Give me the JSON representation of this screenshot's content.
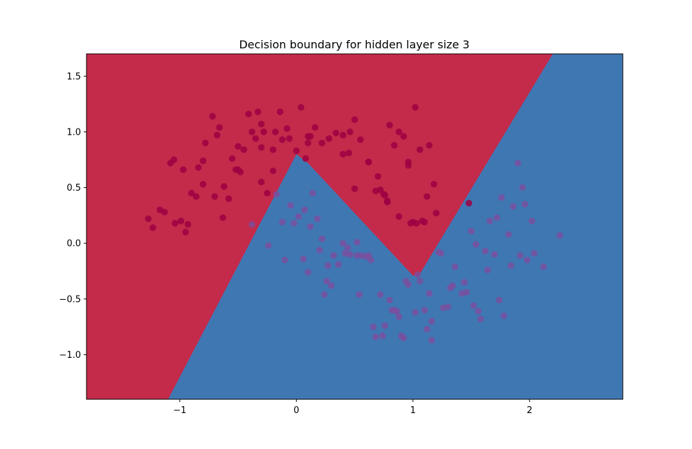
{
  "chart_data": {
    "type": "scatter",
    "title": "Decision boundary for hidden layer size 3",
    "xlabel": "",
    "ylabel": "",
    "xlim": [
      -1.8,
      2.8
    ],
    "ylim": [
      -1.4,
      1.7
    ],
    "xticks": [
      -1,
      0,
      1,
      2
    ],
    "xtick_labels": [
      "−1",
      "0",
      "1",
      "2"
    ],
    "yticks": [
      -1.0,
      -0.5,
      0.0,
      0.5,
      1.0,
      1.5
    ],
    "ytick_labels": [
      "−1.0",
      "−0.5",
      "0.0",
      "0.5",
      "1.0",
      "1.5"
    ],
    "grid": false,
    "legend": "none",
    "colors": {
      "region_class_0": "#c42a4a",
      "region_class_1": "#3f77b3",
      "points_class_0": "#9e0142",
      "points_class_1": "#7d4e9e"
    },
    "boundary": [
      [
        -1.1,
        -1.4
      ],
      [
        0.0,
        0.8
      ],
      [
        0.1,
        0.72
      ],
      [
        1.0,
        -0.29
      ],
      [
        1.05,
        -0.29
      ],
      [
        2.2,
        1.7
      ]
    ],
    "series": [
      {
        "class": 0,
        "x": [
          -1.27,
          -1.23,
          -1.17,
          -1.13,
          -1.08,
          -1.05,
          -0.99,
          -0.97,
          -0.95,
          -0.93,
          -0.9,
          -0.86,
          -0.84,
          -0.8,
          -0.78,
          -0.72,
          -0.7,
          -0.68,
          -0.66,
          -0.63,
          -0.58,
          -0.55,
          -0.52,
          -0.5,
          -0.48,
          -0.45,
          -0.41,
          -0.38,
          -0.35,
          -0.33,
          -0.3,
          -0.28,
          -0.25,
          -0.2,
          -0.18,
          -0.14,
          -0.12,
          -0.08,
          -0.06,
          0.0,
          0.04,
          0.08,
          0.12,
          0.16,
          0.22,
          0.28,
          0.34,
          0.4,
          0.45,
          0.5,
          0.55,
          0.62,
          0.68,
          0.72,
          0.75,
          0.8,
          0.84,
          0.88,
          0.92,
          0.96,
          1.0,
          1.06,
          1.1,
          1.14,
          1.18,
          0.78,
          0.76,
          -0.3,
          0.5,
          1.02,
          1.2,
          1.03,
          0.96,
          0.78,
          0.1,
          0.46,
          1.48,
          -0.2,
          0.88,
          -1.04,
          -0.3,
          -0.62,
          0.1,
          -0.5,
          0.4,
          -0.8,
          0.7,
          1.12,
          0.62,
          0.98,
          1.08
        ],
        "y": [
          0.22,
          0.14,
          0.3,
          0.28,
          0.72,
          0.75,
          0.2,
          0.66,
          0.1,
          0.17,
          0.45,
          0.42,
          0.68,
          0.74,
          0.9,
          1.14,
          0.42,
          0.97,
          1.04,
          0.23,
          0.4,
          0.76,
          0.66,
          0.87,
          0.64,
          0.84,
          1.16,
          1.0,
          0.94,
          1.18,
          0.86,
          1.0,
          0.45,
          0.65,
          1.0,
          1.18,
          0.93,
          1.03,
          0.94,
          0.83,
          1.22,
          0.76,
          0.96,
          1.04,
          0.9,
          0.94,
          0.99,
          0.8,
          0.81,
          1.11,
          0.93,
          0.73,
          0.47,
          0.48,
          0.44,
          1.06,
          0.88,
          1.0,
          0.96,
          0.73,
          0.19,
          0.84,
          0.19,
          0.88,
          0.53,
          0.38,
          0.43,
          1.07,
          0.49,
          1.22,
          0.27,
          0.18,
          0.7,
          0.37,
          0.9,
          1.0,
          0.36,
          0.84,
          0.24,
          0.18,
          0.55,
          0.51,
          0.96,
          0.66,
          0.97,
          0.53,
          0.6,
          0.42,
          0.73,
          0.18,
          0.2
        ],
        "colors_note": ""
      },
      {
        "class": 1,
        "x": [
          -0.17,
          -0.05,
          0.07,
          0.18,
          0.27,
          0.4,
          0.52,
          0.62,
          0.72,
          0.82,
          0.92,
          1.02,
          1.12,
          1.22,
          1.32,
          1.42,
          1.52,
          1.62,
          1.72,
          1.82,
          1.92,
          2.02,
          2.12,
          2.26,
          -0.38,
          -0.24,
          -0.12,
          0.02,
          0.14,
          0.24,
          0.36,
          0.46,
          0.56,
          0.66,
          0.76,
          0.86,
          0.96,
          1.06,
          1.16,
          1.26,
          1.36,
          1.46,
          1.56,
          1.66,
          1.76,
          1.86,
          1.96,
          -0.1,
          0.06,
          0.2,
          0.3,
          0.44,
          0.54,
          0.64,
          0.74,
          0.84,
          0.94,
          1.04,
          1.14,
          1.24,
          1.34,
          1.44,
          1.54,
          1.64,
          1.74,
          1.84,
          1.94,
          2.04,
          -0.02,
          0.12,
          0.26,
          0.42,
          0.6,
          0.8,
          0.9,
          1.1,
          1.3,
          1.5,
          1.7,
          1.9,
          0.22,
          0.1,
          0.32,
          0.68,
          0.88,
          1.16,
          1.58,
          1.78,
          1.98,
          0.52
        ],
        "y": [
          0.44,
          0.34,
          0.3,
          0.22,
          -0.2,
          0.0,
          -0.11,
          -0.11,
          -0.46,
          -0.6,
          -0.85,
          -0.62,
          -0.77,
          -0.08,
          -0.4,
          -0.45,
          -0.56,
          -0.07,
          0.23,
          0.08,
          -0.11,
          0.2,
          -0.21,
          0.07,
          0.17,
          -0.02,
          0.19,
          0.24,
          0.45,
          -0.46,
          -0.19,
          -0.1,
          -0.11,
          -0.75,
          -0.74,
          -0.61,
          -0.37,
          -0.34,
          -0.87,
          -0.58,
          -0.21,
          -0.44,
          -0.61,
          0.2,
          0.41,
          0.33,
          0.35,
          -0.15,
          -0.14,
          -0.06,
          -0.38,
          -0.04,
          -0.46,
          -0.15,
          -0.83,
          -0.6,
          -0.34,
          -0.28,
          -0.45,
          -0.09,
          -0.38,
          -0.35,
          -0.01,
          -0.24,
          -0.51,
          -0.2,
          0.5,
          -0.09,
          0.18,
          0.15,
          -0.34,
          -0.09,
          -0.12,
          -0.51,
          -0.83,
          -0.6,
          -0.57,
          0.11,
          -0.1,
          0.72,
          0.04,
          -0.26,
          -0.11,
          -0.84,
          -0.66,
          -0.7,
          -0.68,
          -0.65,
          -0.15,
          0.01
        ]
      }
    ]
  }
}
